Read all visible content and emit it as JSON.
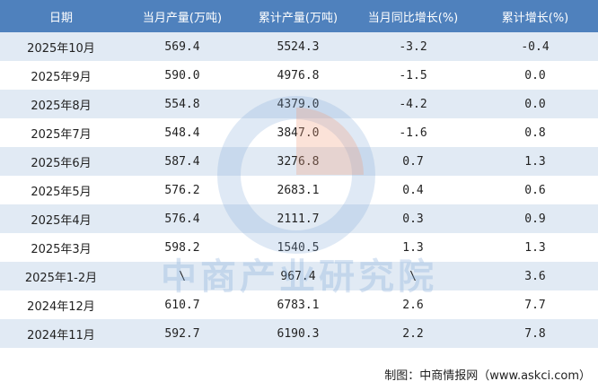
{
  "table": {
    "header": [
      "日期",
      "当月产量(万吨)",
      "累计产量(万吨)",
      "当月同比增长(%)",
      "累计增长(%)"
    ],
    "rows": [
      [
        "2025年10月",
        "569.4",
        "5524.3",
        "-3.2",
        "-0.4"
      ],
      [
        "2025年9月",
        "590.0",
        "4976.8",
        "-1.5",
        "0.0"
      ],
      [
        "2025年8月",
        "554.8",
        "4379.0",
        "-4.2",
        "0.0"
      ],
      [
        "2025年7月",
        "548.4",
        "3847.0",
        "-1.6",
        "0.8"
      ],
      [
        "2025年6月",
        "587.4",
        "3276.8",
        "0.7",
        "1.3"
      ],
      [
        "2025年5月",
        "576.2",
        "2683.1",
        "0.4",
        "0.6"
      ],
      [
        "2025年4月",
        "576.4",
        "2111.7",
        "0.3",
        "0.9"
      ],
      [
        "2025年3月",
        "598.2",
        "1540.5",
        "1.3",
        "1.3"
      ],
      [
        "2025年1-2月",
        "\\",
        "967.4",
        "\\",
        "3.6"
      ],
      [
        "2024年12月",
        "610.7",
        "6783.1",
        "2.6",
        "7.7"
      ],
      [
        "2024年11月",
        "592.7",
        "6190.3",
        "2.2",
        "7.8"
      ]
    ]
  },
  "watermark": "中商产业研究院",
  "footer": "制图：中商情报网（www.askci.com）"
}
